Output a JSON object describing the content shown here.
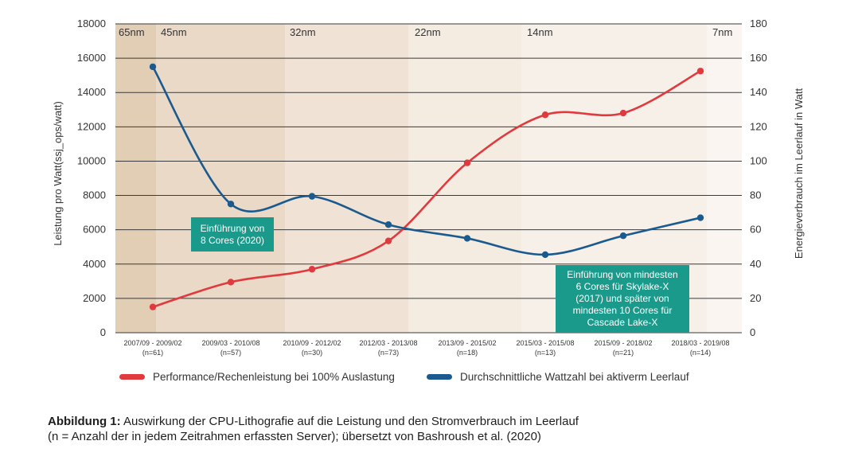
{
  "chart_data": {
    "type": "line",
    "categories": [
      "2007/09 - 2009/02\n(n=61)",
      "2009/03 - 2010/08\n(n=57)",
      "2010/09 - 2012/02\n(n=30)",
      "2012/03 - 2013/08\n(n=73)",
      "2013/09 - 2015/02\n(n=18)",
      "2015/03 - 2015/08\n(n=13)",
      "2015/09 - 2018/02\n(n=21)",
      "2018/03 - 2019/08\n(n=14)"
    ],
    "series": [
      {
        "name": "Performance/Rechenleistung bei 100% Auslastung",
        "axis": "left",
        "color": "#e03a3e",
        "values": [
          1500,
          2950,
          3700,
          5350,
          9900,
          12700,
          12800,
          15250
        ]
      },
      {
        "name": "Durchschnittliche Wattzahl bei aktiverm Leerlauf",
        "axis": "right",
        "color": "#1a5a8e",
        "values": [
          155,
          75,
          79.5,
          63,
          55,
          45.5,
          56.5,
          67
        ]
      }
    ],
    "ylabel": "Leistung pro Watt(ssj_ops/watt)",
    "ylabel_right": "Energieverbrauch im Leerlauf in Watt",
    "ylim": [
      0,
      18000
    ],
    "ylim_right": [
      0,
      180
    ],
    "yticks": [
      0,
      2000,
      4000,
      6000,
      8000,
      10000,
      12000,
      14000,
      16000,
      18000
    ],
    "yticks_right": [
      0,
      20,
      40,
      60,
      80,
      100,
      120,
      140,
      160,
      180
    ],
    "grid": true,
    "legend_position": "bottom",
    "process_nodes": [
      "65nm",
      "45nm",
      "32nm",
      "22nm",
      "14nm",
      "7nm"
    ],
    "band_colors": [
      "#e2cdb5",
      "#ead9c7",
      "#f0e3d5",
      "#f4ebe1",
      "#f7f0e9",
      "#faf5f0"
    ],
    "annotations": [
      "Einführung von\n8 Cores (2020)",
      "Einführung von mindesten\n6 Cores für Skylake-X\n(2017) und später von\nmindesten 10 Cores für\nCascade Lake-X"
    ],
    "annotation_color": "#1a9a8a"
  },
  "caption": {
    "label": "Abbildung 1:",
    "text": " Auswirkung der CPU-Lithografie auf die Leistung und den Stromverbrauch im Leerlauf",
    "line2": "(n = Anzahl der in jedem Zeitrahmen erfassten Server); übersetzt von Bashroush et al. (2020)"
  }
}
